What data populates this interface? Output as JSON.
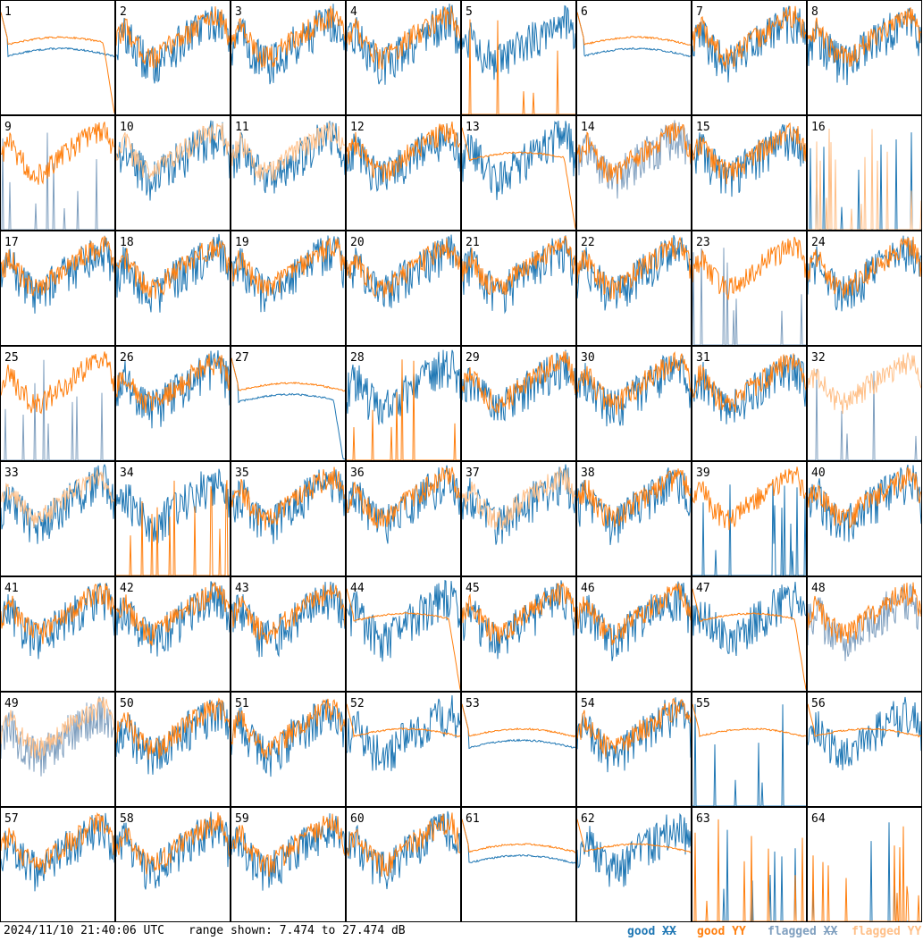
{
  "chart_data": {
    "type": "line",
    "layout": "8x8 small multiples",
    "tiles": [
      "1",
      "2",
      "3",
      "4",
      "5",
      "6",
      "7",
      "8",
      "9",
      "10",
      "11",
      "12",
      "13",
      "14",
      "15",
      "16",
      "17",
      "18",
      "19",
      "20",
      "21",
      "22",
      "23",
      "24",
      "25",
      "26",
      "27",
      "28",
      "29",
      "30",
      "31",
      "32",
      "33",
      "34",
      "35",
      "36",
      "37",
      "38",
      "39",
      "40",
      "41",
      "42",
      "43",
      "44",
      "45",
      "46",
      "47",
      "48",
      "49",
      "50",
      "51",
      "52",
      "53",
      "54",
      "55",
      "56",
      "57",
      "58",
      "59",
      "60",
      "61",
      "62",
      "63",
      "64"
    ],
    "y_range_db": [
      7.474,
      27.474
    ],
    "series": [
      {
        "name": "good XX",
        "color": "#1f77b4"
      },
      {
        "name": "good YY",
        "color": "#ff7f0e"
      },
      {
        "name": "flagged XX",
        "color": "#7f9fbf"
      },
      {
        "name": "flagged YY",
        "color": "#ffbf87"
      }
    ],
    "tile_status": {
      "flagged_xx": [
        "9",
        "14",
        "23",
        "25",
        "32",
        "48",
        "49"
      ],
      "flagged_yy": [
        "10",
        "11",
        "16",
        "32",
        "33",
        "37",
        "49"
      ],
      "dropout_xx": [
        "9",
        "16",
        "23",
        "25",
        "32",
        "39",
        "55",
        "63",
        "64"
      ],
      "dropout_yy": [
        "5",
        "16",
        "28",
        "34",
        "63",
        "64"
      ],
      "rolloff_yy": [
        "1",
        "13",
        "44",
        "47"
      ],
      "rolloff_xx": [
        "27"
      ],
      "smooth_yy": [
        "1",
        "6",
        "13",
        "27",
        "44",
        "47",
        "52",
        "53",
        "55",
        "56",
        "61",
        "62"
      ],
      "smooth_xx": [
        "1",
        "6",
        "27",
        "53",
        "61"
      ]
    }
  },
  "footer": {
    "timestamp": "2024/11/10 21:40:06 UTC",
    "range": "range shown: 7.474 to 27.474 dB",
    "legend": {
      "good_prefix": "good ",
      "flagged_prefix": "flagged ",
      "xx": "XX",
      "yy": "YY"
    }
  },
  "colors": {
    "good_xx": "#1f77b4",
    "good_yy": "#ff7f0e",
    "flagged_xx": "#7f9fbf",
    "flagged_yy": "#ffbf87",
    "grid": "#000000"
  }
}
